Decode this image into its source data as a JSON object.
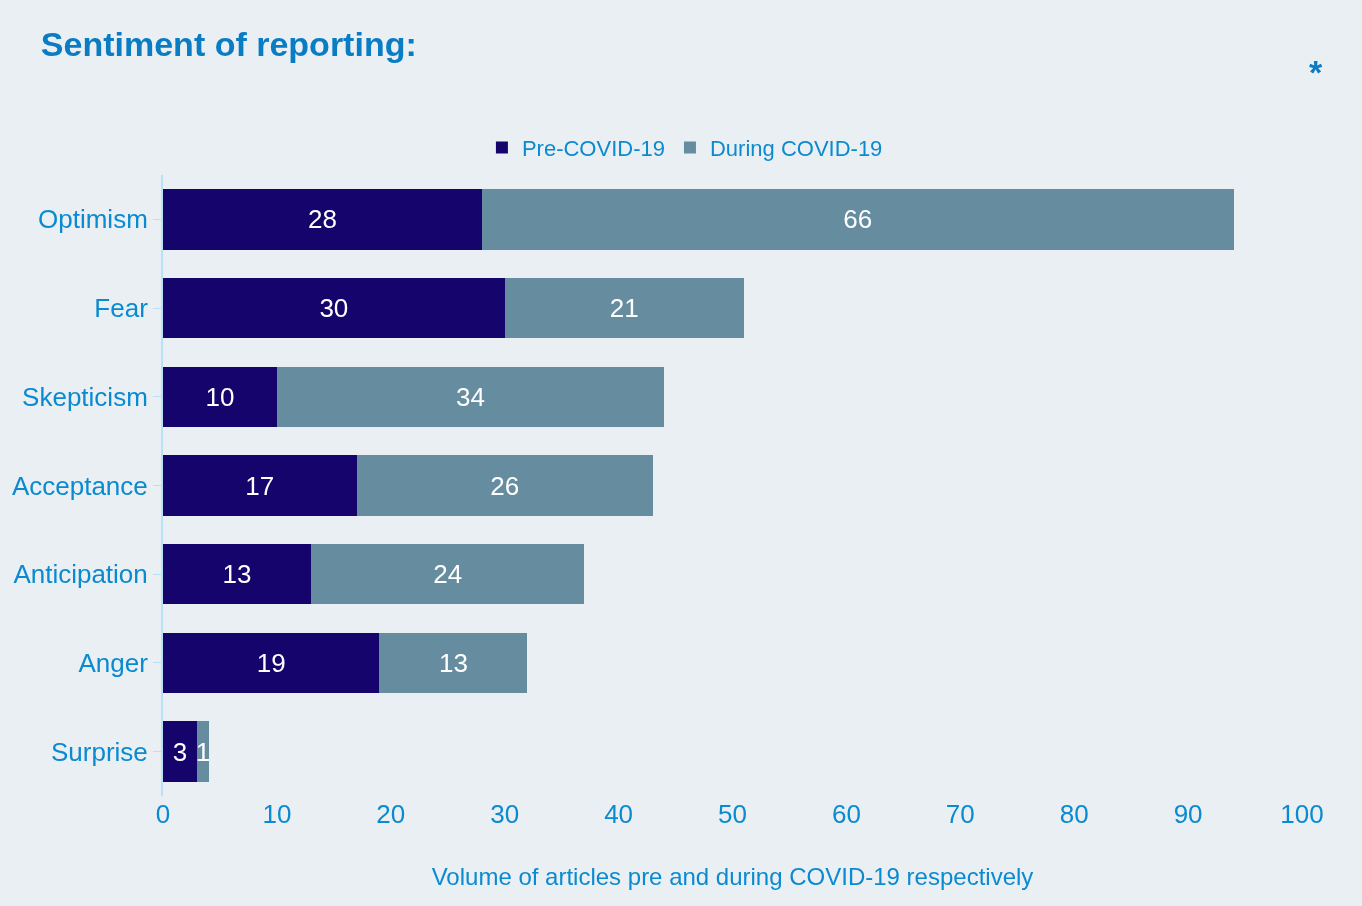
{
  "chart_data": {
    "type": "bar",
    "orientation": "horizontal",
    "stacked": true,
    "title": "Sentiment of reporting:",
    "annotations": [
      "*"
    ],
    "xlabel": "Volume of articles pre and during COVID-19 respectively",
    "categories": [
      "Optimism",
      "Fear",
      "Skepticism",
      "Acceptance",
      "Anticipation",
      "Anger",
      "Surprise"
    ],
    "series": [
      {
        "name": "Pre-COVID-19",
        "color": "#15046b",
        "values": [
          28,
          30,
          10,
          17,
          13,
          19,
          3
        ]
      },
      {
        "name": "During COVID-19",
        "color": "#668d9f",
        "values": [
          66,
          21,
          34,
          26,
          24,
          13,
          1
        ]
      }
    ],
    "xlim": [
      0,
      100
    ],
    "xticks": [
      0,
      10,
      20,
      30,
      40,
      50,
      60,
      70,
      80,
      90,
      100
    ],
    "data_labels": true,
    "grid": false,
    "legend": "top"
  }
}
